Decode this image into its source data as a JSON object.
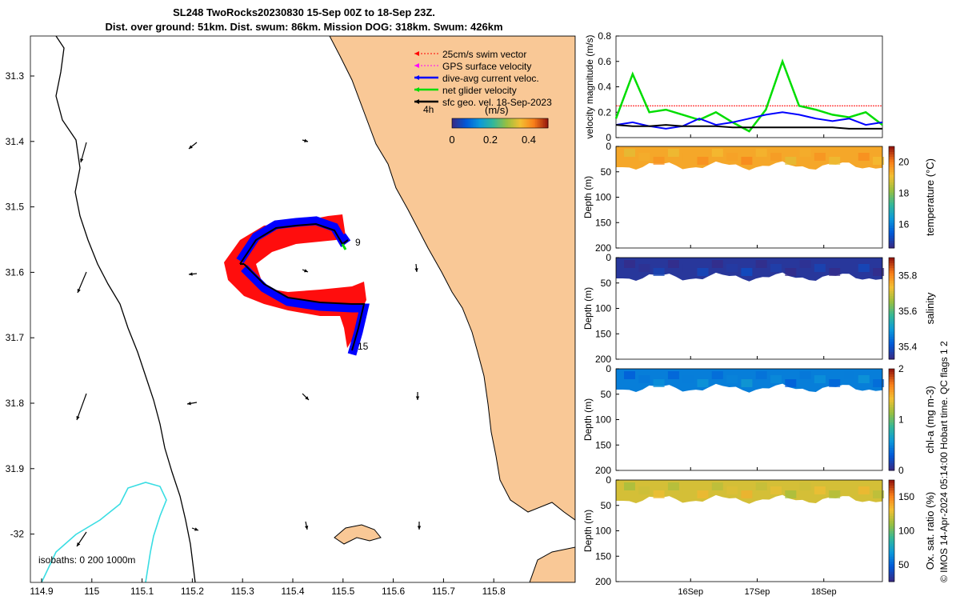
{
  "title": {
    "line1": "SL248 TwoRocks20230830 15-Sep 00Z to 18-Sep 23Z.",
    "line2": "Dist. over ground: 51km. Dist. swum: 86km. Mission DOG: 318km. Swum: 426km"
  },
  "colors": {
    "land": "#f9c896",
    "coast": "#000000",
    "isobath": "#39dde3",
    "swim_vector": "#ff0000",
    "gps_velocity": "#ff00ff",
    "current_velocity": "#0000ff",
    "net_velocity": "#00dd00",
    "sfc_geo": "#000000"
  },
  "map": {
    "legend": [
      {
        "label": "25cm/s swim vector",
        "color": "#ff0000",
        "style": "dotted"
      },
      {
        "label": "GPS surface velocity",
        "color": "#ff00ff",
        "style": "dotted"
      },
      {
        "label": "dive-avg current veloc.",
        "color": "#0000ff",
        "style": "solid"
      },
      {
        "label": "net glider velocity",
        "color": "#00dd00",
        "style": "solid"
      },
      {
        "label": "sfc geo. vel. 18-Sep-2023",
        "color": "#000000",
        "style": "solid"
      }
    ],
    "time_label": "4h",
    "colorbar": {
      "label": "(m/s)",
      "ticks": [
        "0",
        "0.2",
        "0.4"
      ],
      "range": [
        0,
        0.5
      ]
    },
    "track_labels": [
      "9",
      "15"
    ],
    "isobath_text": "isobaths: 0   200  1000m",
    "xticks": [
      "114.9",
      "115",
      "115.1",
      "115.2",
      "115.3",
      "115.4",
      "115.5",
      "115.6",
      "115.7",
      "115.8"
    ],
    "yticks": [
      "31.3",
      "31.4",
      "31.5",
      "31.6",
      "31.7",
      "31.8",
      "31.9",
      "-32"
    ]
  },
  "chart_data": [
    {
      "type": "line",
      "title": "",
      "ylabel": "velocity magnitude (m/s)",
      "ylim": [
        0,
        0.8
      ],
      "yticks": [
        "0",
        "0.2",
        "0.4",
        "0.6",
        "0.8"
      ],
      "x": [
        0,
        0.25,
        0.5,
        0.75,
        1,
        1.25,
        1.5,
        1.75,
        2,
        2.25,
        2.5,
        2.75,
        3,
        3.25,
        3.5,
        3.75,
        4
      ],
      "series": [
        {
          "name": "25cm/s swim vector",
          "color": "#ff0000",
          "values": [
            0.25,
            0.25,
            0.25,
            0.25,
            0.25,
            0.25,
            0.25,
            0.25,
            0.25,
            0.25,
            0.25,
            0.25,
            0.25,
            0.25,
            0.25,
            0.25,
            0.25
          ]
        },
        {
          "name": "net glider velocity",
          "color": "#00dd00",
          "values": [
            0.15,
            0.5,
            0.2,
            0.22,
            0.18,
            0.14,
            0.2,
            0.12,
            0.05,
            0.22,
            0.6,
            0.25,
            0.22,
            0.18,
            0.16,
            0.2,
            0.1
          ]
        },
        {
          "name": "dive-avg current veloc.",
          "color": "#0000ff",
          "values": [
            0.1,
            0.12,
            0.09,
            0.07,
            0.09,
            0.15,
            0.1,
            0.12,
            0.15,
            0.18,
            0.2,
            0.18,
            0.15,
            0.13,
            0.15,
            0.1,
            0.12
          ]
        },
        {
          "name": "sfc geo. vel.",
          "color": "#000000",
          "values": [
            0.1,
            0.09,
            0.09,
            0.1,
            0.09,
            0.09,
            0.09,
            0.08,
            0.08,
            0.08,
            0.08,
            0.08,
            0.08,
            0.08,
            0.07,
            0.07,
            0.07
          ]
        }
      ]
    },
    {
      "type": "heatmap",
      "ylabel": "Depth (m)",
      "clabel": "temperature (°C)",
      "ylim": [
        0,
        200
      ],
      "yticks": [
        "0",
        "50",
        "100",
        "150",
        "200"
      ],
      "cticks": [
        "16",
        "18",
        "20"
      ],
      "crange": [
        14.5,
        21
      ],
      "value": 19.5
    },
    {
      "type": "heatmap",
      "ylabel": "Depth (m)",
      "clabel": "salinity",
      "ylim": [
        0,
        200
      ],
      "yticks": [
        "0",
        "50",
        "100",
        "150",
        "200"
      ],
      "cticks": [
        "35.4",
        "35.6",
        "35.8"
      ],
      "crange": [
        35.33,
        35.9
      ],
      "value": 35.35
    },
    {
      "type": "heatmap",
      "ylabel": "Depth (m)",
      "clabel": "chl-a (mg m-3)",
      "ylim": [
        0,
        200
      ],
      "yticks": [
        "0",
        "50",
        "100",
        "150",
        "200"
      ],
      "cticks": [
        "0",
        "1",
        "2"
      ],
      "crange": [
        0,
        2
      ],
      "value": 0.45
    },
    {
      "type": "heatmap",
      "ylabel": "Depth (m)",
      "clabel": "Ox. sat. ratio (%)",
      "ylim": [
        0,
        200
      ],
      "yticks": [
        "0",
        "50",
        "100",
        "150",
        "200"
      ],
      "cticks": [
        "50",
        "100",
        "150"
      ],
      "crange": [
        25,
        175
      ],
      "value": 125,
      "xticks": [
        "16Sep",
        "17Sep",
        "18Sep"
      ]
    }
  ],
  "side_note": "© IMOS 14-Apr-2024 05:14:00 Hobart time. QC flags 1  2"
}
